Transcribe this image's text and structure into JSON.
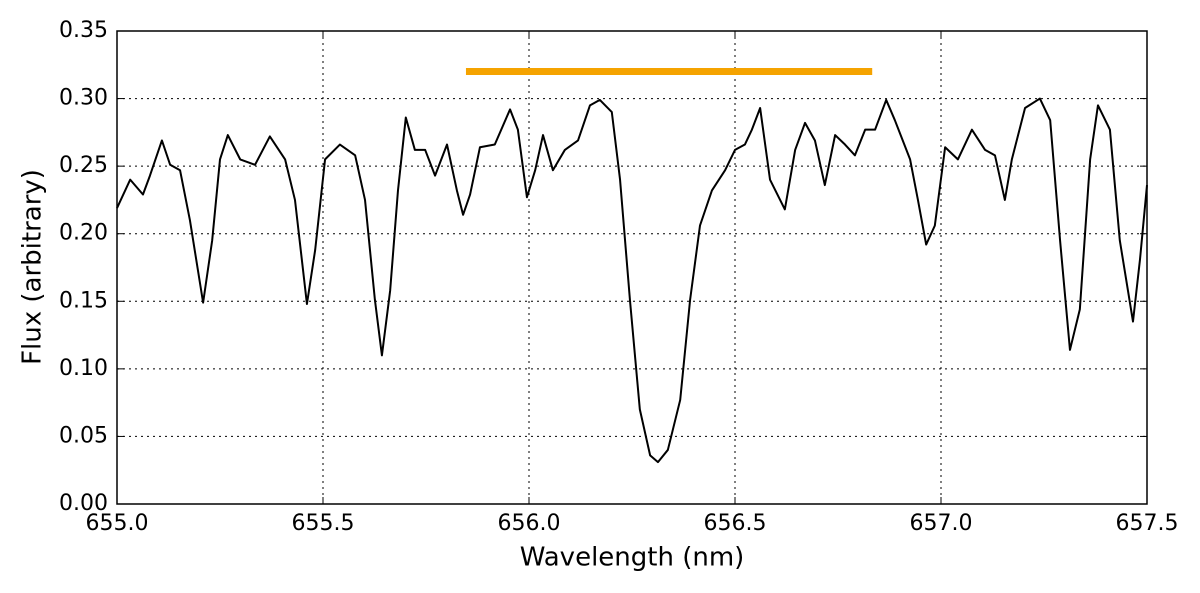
{
  "chart_data": {
    "type": "line",
    "x_label": "Wavelength (nm)",
    "y_label": "Flux (arbitrary)",
    "xlim": [
      655.0,
      657.5
    ],
    "ylim": [
      0.0,
      0.35
    ],
    "xticks": [
      {
        "value": 655,
        "label": "655.0"
      },
      655.5,
      {
        "value": 656,
        "label": "656.0"
      },
      656.5,
      {
        "value": 657,
        "label": "657.0"
      },
      657.5
    ],
    "yticks": [
      {
        "value": 0,
        "label": "0.00"
      },
      0.05,
      {
        "value": 0.1,
        "label": "0.10"
      },
      0.15,
      {
        "value": 0.2,
        "label": "0.20"
      },
      0.25,
      {
        "value": 0.3,
        "label": "0.30"
      },
      0.35
    ],
    "grid": true,
    "series": [
      {
        "color": "#000000",
        "x": [
          655.0,
          655.032,
          655.063,
          655.08,
          655.109,
          655.129,
          655.153,
          655.177,
          655.209,
          655.231,
          655.25,
          655.269,
          655.299,
          655.335,
          655.371,
          655.408,
          655.432,
          655.461,
          655.481,
          655.505,
          655.541,
          655.578,
          655.602,
          655.626,
          655.643,
          655.663,
          655.682,
          655.701,
          655.723,
          655.748,
          655.772,
          655.801,
          655.825,
          655.84,
          655.857,
          655.881,
          655.917,
          655.954,
          655.973,
          655.995,
          656.015,
          656.034,
          656.058,
          656.087,
          656.119,
          656.148,
          656.172,
          656.201,
          656.221,
          656.245,
          656.269,
          656.294,
          656.313,
          656.337,
          656.367,
          656.391,
          656.415,
          656.444,
          656.476,
          656.5,
          656.524,
          656.541,
          656.561,
          656.585,
          656.621,
          656.646,
          656.67,
          656.694,
          656.718,
          656.743,
          656.767,
          656.791,
          656.816,
          656.84,
          656.867,
          656.888,
          656.925,
          656.944,
          656.964,
          656.985,
          657.01,
          657.041,
          657.075,
          657.107,
          657.131,
          657.155,
          657.172,
          657.204,
          657.24,
          657.265,
          657.289,
          657.313,
          657.337,
          657.362,
          657.381,
          657.41,
          657.434,
          657.466,
          657.483,
          657.5
        ],
        "values": [
          0.219,
          0.24,
          0.229,
          0.243,
          0.269,
          0.251,
          0.247,
          0.21,
          0.149,
          0.195,
          0.255,
          0.273,
          0.255,
          0.251,
          0.272,
          0.255,
          0.225,
          0.148,
          0.188,
          0.255,
          0.266,
          0.258,
          0.225,
          0.151,
          0.11,
          0.158,
          0.232,
          0.286,
          0.262,
          0.262,
          0.243,
          0.266,
          0.232,
          0.214,
          0.229,
          0.264,
          0.266,
          0.292,
          0.277,
          0.227,
          0.247,
          0.273,
          0.247,
          0.262,
          0.269,
          0.295,
          0.299,
          0.29,
          0.24,
          0.151,
          0.07,
          0.036,
          0.031,
          0.04,
          0.077,
          0.151,
          0.206,
          0.232,
          0.247,
          0.262,
          0.266,
          0.277,
          0.293,
          0.24,
          0.218,
          0.262,
          0.282,
          0.269,
          0.236,
          0.273,
          0.266,
          0.258,
          0.277,
          0.277,
          0.299,
          0.284,
          0.255,
          0.225,
          0.192,
          0.206,
          0.264,
          0.255,
          0.277,
          0.262,
          0.258,
          0.225,
          0.255,
          0.293,
          0.3,
          0.284,
          0.195,
          0.114,
          0.144,
          0.255,
          0.295,
          0.277,
          0.195,
          0.135,
          0.181,
          0.236
        ],
        "width": 2
      },
      {
        "color": "#f5a300",
        "x": [
          655.847,
          656.833
        ],
        "values": [
          0.32,
          0.32
        ],
        "width": 7
      }
    ]
  }
}
